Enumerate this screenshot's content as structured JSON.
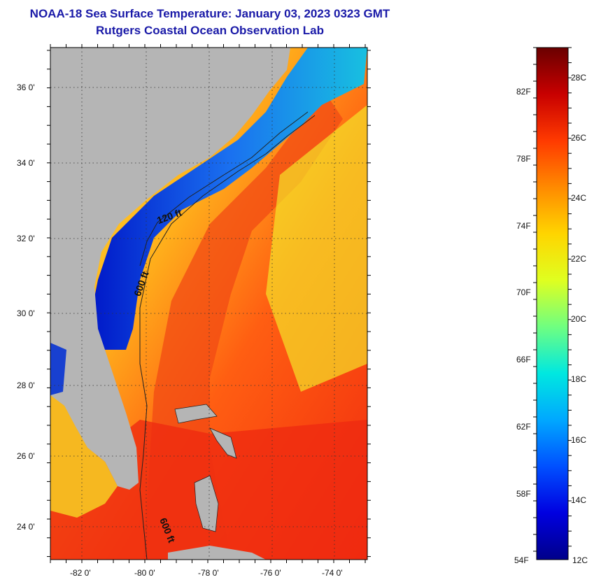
{
  "header": {
    "title": "NOAA-18 Sea Surface Temperature:  January 03, 2023 0323 GMT",
    "subtitle": "Rutgers Coastal Ocean Observation Lab"
  },
  "map": {
    "lat_labels": [
      "36 0'",
      "34 0'",
      "32 0'",
      "30 0'",
      "28 0'",
      "26 0'",
      "24 0'"
    ],
    "lon_labels": [
      "-82 0'",
      "-80 0'",
      "-78 0'",
      "-76 0'",
      "-74 0'"
    ],
    "contour_labels": [
      "120 ft",
      "600 ft",
      "600 ft"
    ],
    "colors": {
      "land": "#b5b5b5",
      "cold_coastal": "#0a2ad8",
      "warm": "#f22d10",
      "mid": "#ffd21e"
    }
  },
  "colorbar": {
    "fahrenheit": [
      "82F",
      "78F",
      "74F",
      "70F",
      "66F",
      "62F",
      "58F",
      "54F"
    ],
    "celsius": [
      "28C",
      "26C",
      "24C",
      "22C",
      "20C",
      "18C",
      "16C",
      "14C",
      "12C"
    ],
    "stops": [
      "#6a0000",
      "#c80000",
      "#ff3a00",
      "#ff8a00",
      "#ffd500",
      "#dfff20",
      "#70ff80",
      "#00e8e0",
      "#00a8ff",
      "#0050ff",
      "#0000e0",
      "#00008a"
    ]
  }
}
